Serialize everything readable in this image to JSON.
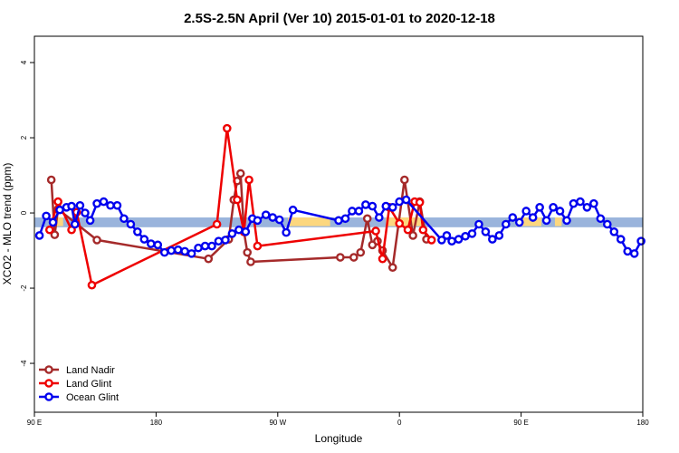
{
  "chart_data": {
    "type": "line",
    "title": "2.5S-2.5N April (Ver 10)   2015-01-01 to 2020-12-18",
    "xlabel": "Longitude",
    "ylabel": "XCO2 - MLO trend (ppm)",
    "xlim": [
      90,
      450
    ],
    "ylim": [
      -5.3,
      4.7
    ],
    "x_ticks": [
      {
        "value": 90,
        "label": "90 E"
      },
      {
        "value": 162,
        "label": "180"
      },
      {
        "value": 234,
        "label": "90 W"
      },
      {
        "value": 306,
        "label": "0"
      },
      {
        "value": 378,
        "label": "90 E"
      },
      {
        "value": 450,
        "label": "180"
      }
    ],
    "y_ticks": [
      -4,
      -2,
      0,
      2,
      4
    ],
    "band": {
      "y_min": -0.38,
      "y_max": -0.12,
      "color": "#9ab4dc"
    },
    "highlight_band": {
      "y_min": -0.35,
      "y_max": -0.12,
      "color": "#fcd77f",
      "segments": [
        [
          100,
          107
        ],
        [
          240,
          265
        ],
        [
          298,
          320
        ],
        [
          375,
          390
        ],
        [
          398,
          402
        ]
      ]
    },
    "legend": {
      "position": "bottom-left",
      "entries": [
        "Land Nadir",
        "Land Glint",
        "Ocean Glint"
      ]
    },
    "series": [
      {
        "name": "Ocean Glint",
        "color": "#0000ee",
        "x": [
          93,
          97,
          101,
          105,
          109,
          112,
          114,
          117,
          120,
          123,
          127,
          131,
          135,
          139,
          143,
          147,
          151,
          155,
          159,
          163,
          167,
          171,
          175,
          179,
          183,
          187,
          191,
          195,
          199,
          203,
          207,
          211,
          215,
          219,
          222,
          227,
          231,
          235,
          239,
          243,
          270,
          274,
          278,
          282,
          286,
          290,
          294,
          298,
          302,
          306,
          310,
          331,
          334,
          337,
          341,
          345,
          349,
          353,
          357,
          361,
          365,
          369,
          373,
          377,
          381,
          385,
          389,
          393,
          397,
          401,
          405,
          409,
          413,
          417,
          421,
          425,
          429,
          433,
          437,
          441,
          445,
          449
        ],
        "y": [
          -0.6,
          -0.08,
          -0.25,
          0.08,
          0.15,
          0.18,
          -0.3,
          0.2,
          0.0,
          -0.2,
          0.25,
          0.3,
          0.2,
          0.2,
          -0.15,
          -0.3,
          -0.5,
          -0.7,
          -0.82,
          -0.85,
          -1.05,
          -1.0,
          -0.98,
          -1.02,
          -1.08,
          -0.93,
          -0.88,
          -0.88,
          -0.75,
          -0.72,
          -0.55,
          -0.45,
          -0.5,
          -0.15,
          -0.2,
          -0.05,
          -0.12,
          -0.18,
          -0.52,
          0.08,
          -0.2,
          -0.15,
          0.05,
          0.05,
          0.22,
          0.18,
          -0.12,
          0.18,
          0.15,
          0.3,
          0.35,
          -0.72,
          -0.6,
          -0.75,
          -0.7,
          -0.62,
          -0.55,
          -0.3,
          -0.5,
          -0.7,
          -0.6,
          -0.3,
          -0.12,
          -0.25,
          0.05,
          -0.12,
          0.15,
          -0.2,
          0.15,
          0.05,
          -0.2,
          0.25,
          0.3,
          0.15,
          0.25,
          -0.15,
          -0.3,
          -0.5,
          -0.7,
          -1.02,
          -1.08,
          -0.75
        ]
      },
      {
        "name": "Land Nadir",
        "color": "#a52a2a",
        "x": [
          100,
          102,
          104,
          127,
          193,
          205,
          208,
          210,
          212,
          214,
          216,
          218,
          271,
          279,
          283,
          287,
          290,
          293,
          296,
          302,
          309,
          314,
          318,
          322
        ],
        "y": [
          0.88,
          -0.58,
          0.1,
          -0.72,
          -1.22,
          -0.7,
          0.35,
          0.85,
          1.05,
          -0.5,
          -1.05,
          -1.3,
          -1.18,
          -1.18,
          -1.05,
          -0.15,
          -0.85,
          -0.75,
          -1.0,
          -1.45,
          0.88,
          -0.6,
          0.3,
          -0.7
        ]
      },
      {
        "name": "Land Glint",
        "color": "#ee0000",
        "x": [
          99,
          104,
          112,
          115,
          124,
          198,
          204,
          210,
          214,
          217,
          222,
          292,
          296,
          300,
          306,
          311,
          315,
          318,
          320,
          325
        ],
        "y": [
          -0.45,
          0.3,
          -0.45,
          0.02,
          -1.92,
          -0.3,
          2.25,
          0.35,
          -0.5,
          0.88,
          -0.88,
          -0.48,
          -1.22,
          0.15,
          -0.28,
          -0.45,
          0.3,
          0.28,
          -0.45,
          -0.72
        ]
      }
    ]
  }
}
